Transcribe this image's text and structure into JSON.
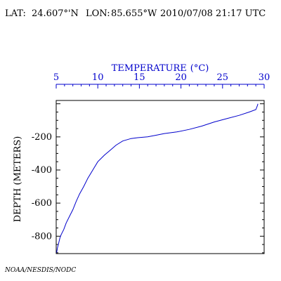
{
  "header": {
    "lat_label": "LAT:",
    "lat_value": "24.607°'N",
    "lon_label": "LON:",
    "lon_value": "85.655°W",
    "datetime": "2010/07/08 21:17 UTC"
  },
  "footer": {
    "credit": "NOAA/NESDIS/NODC"
  },
  "colors": {
    "profile": "#0000cc",
    "axis_top": "#0000cc",
    "axis_left": "#000000"
  },
  "chart_data": {
    "type": "line",
    "title": "",
    "xlabel_text": "TEMPERATURE",
    "xlabel_unit": "(°C)",
    "ylabel": "DEPTH (METERS)",
    "x_axis_position": "top",
    "xlim": [
      5,
      30
    ],
    "ylim": [
      -905,
      20
    ],
    "x_tick_labels": [
      "5",
      "10",
      "15",
      "20",
      "25",
      "30"
    ],
    "y_tick_labels": [
      "-200",
      "-400",
      "-600",
      "-800"
    ],
    "grid": false,
    "legend": "none",
    "series": [
      {
        "points": [
          [
            5.05,
            -900
          ],
          [
            5.15,
            -870
          ],
          [
            5.3,
            -840
          ],
          [
            5.45,
            -810
          ],
          [
            5.6,
            -790
          ],
          [
            5.9,
            -760
          ],
          [
            6.2,
            -720
          ],
          [
            6.6,
            -680
          ],
          [
            7.0,
            -640
          ],
          [
            7.4,
            -590
          ],
          [
            7.8,
            -545
          ],
          [
            8.3,
            -500
          ],
          [
            8.8,
            -450
          ],
          [
            9.4,
            -400
          ],
          [
            10.0,
            -350
          ],
          [
            10.8,
            -310
          ],
          [
            11.5,
            -280
          ],
          [
            12.2,
            -250
          ],
          [
            13.0,
            -225
          ],
          [
            14.0,
            -210
          ],
          [
            14.8,
            -205
          ],
          [
            16.0,
            -200
          ],
          [
            17.0,
            -190
          ],
          [
            18.0,
            -180
          ],
          [
            19.5,
            -170
          ],
          [
            21.0,
            -155
          ],
          [
            22.5,
            -135
          ],
          [
            24.0,
            -110
          ],
          [
            25.5,
            -90
          ],
          [
            27.0,
            -70
          ],
          [
            28.2,
            -50
          ],
          [
            29.0,
            -35
          ],
          [
            29.2,
            -10
          ],
          [
            29.25,
            0
          ]
        ]
      }
    ]
  }
}
